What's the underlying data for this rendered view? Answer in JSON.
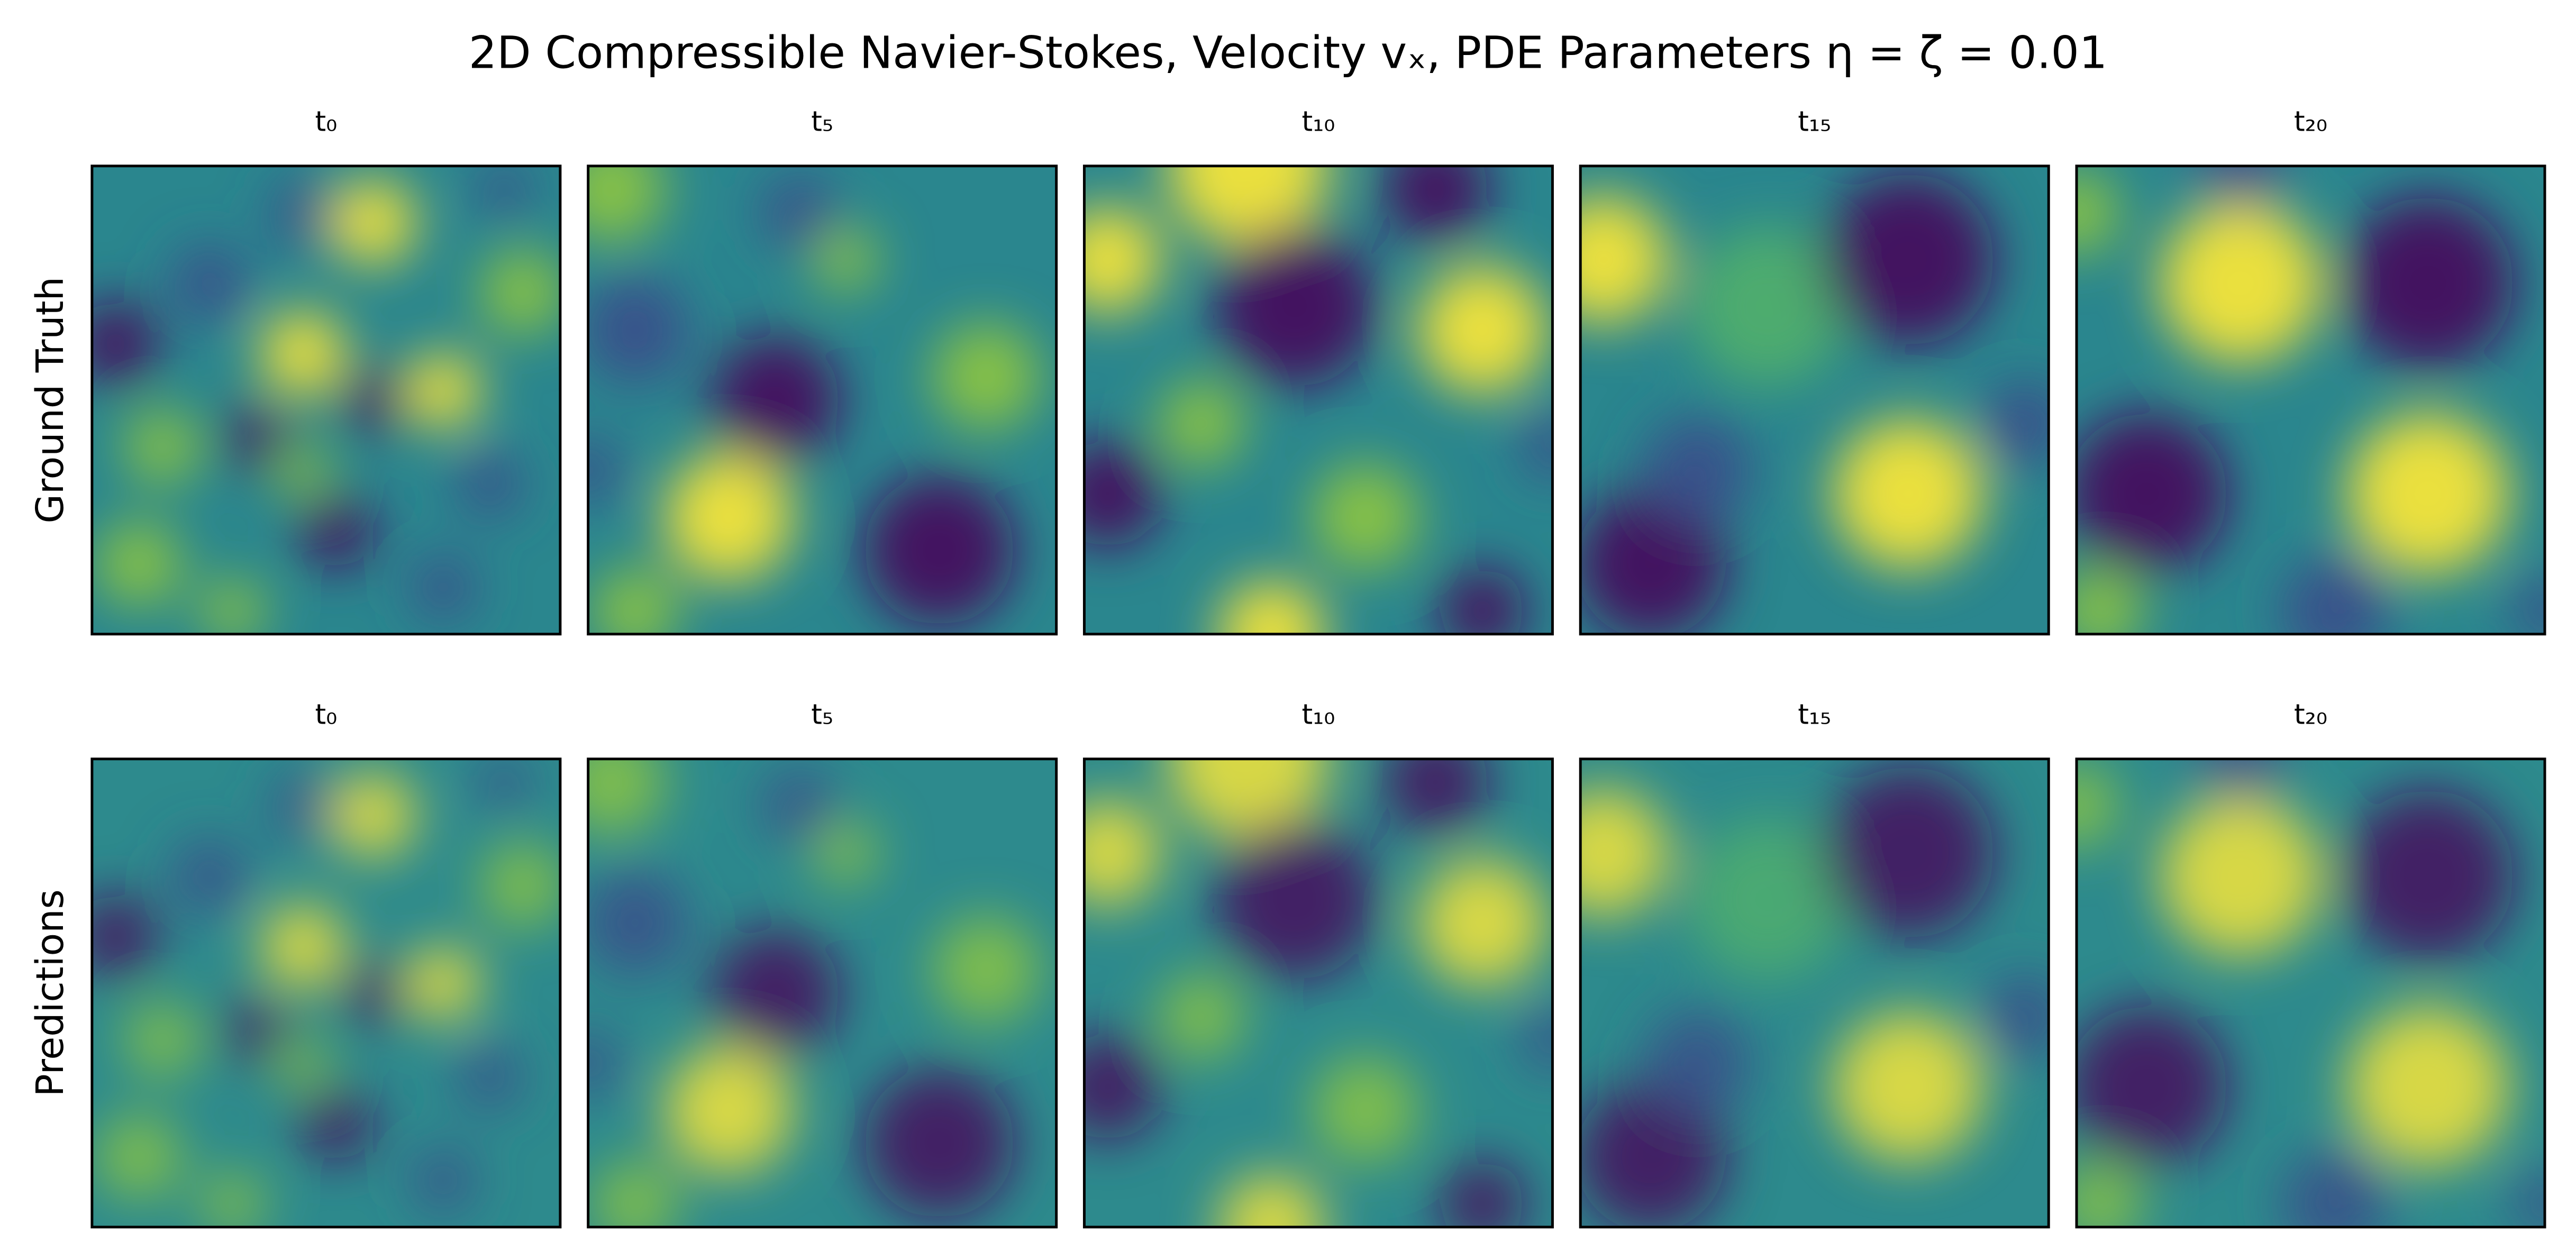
{
  "figure": {
    "title": "2D Compressible Navier-Stokes, Velocity vₓ, PDE Parameters η = ζ = 0.01",
    "rows": [
      {
        "label": "Ground Truth",
        "panels": [
          "t₀",
          "t₅",
          "t₁₀",
          "t₁₅",
          "t₂₀"
        ]
      },
      {
        "label": "Predictions",
        "panels": [
          "t₀",
          "t₅",
          "t₁₀",
          "t₁₅",
          "t₂₀"
        ]
      }
    ]
  }
}
